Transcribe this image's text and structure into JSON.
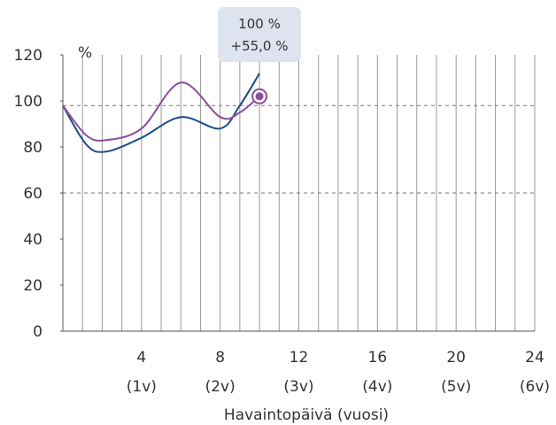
{
  "chart_data": {
    "type": "line",
    "ylabel": "%",
    "xlabel": "Havaintopäivä (vuosi)",
    "ylim": [
      0,
      120
    ],
    "xlim": [
      0,
      24
    ],
    "yticks": [
      0,
      20,
      40,
      60,
      80,
      100,
      120
    ],
    "xticks": [
      {
        "value": 4,
        "label": "4",
        "sublabel": "(1v)"
      },
      {
        "value": 8,
        "label": "8",
        "sublabel": "(2v)"
      },
      {
        "value": 12,
        "label": "12",
        "sublabel": "(3v)"
      },
      {
        "value": 16,
        "label": "16",
        "sublabel": "(4v)"
      },
      {
        "value": 20,
        "label": "20",
        "sublabel": "(5v)"
      },
      {
        "value": 24,
        "label": "24",
        "sublabel": "(6v)"
      }
    ],
    "reference_lines": [
      98,
      60
    ],
    "series": [
      {
        "color": "#1b4f86",
        "points": [
          [
            0,
            98
          ],
          [
            1.2,
            81
          ],
          [
            2.2,
            78
          ],
          [
            4,
            84
          ],
          [
            6,
            93
          ],
          [
            8,
            88
          ],
          [
            9,
            98
          ],
          [
            10,
            112
          ]
        ]
      },
      {
        "color": "#8b4d9e",
        "points": [
          [
            0,
            98
          ],
          [
            1.2,
            85
          ],
          [
            2.2,
            83
          ],
          [
            4,
            88
          ],
          [
            6,
            108
          ],
          [
            8,
            93
          ],
          [
            9,
            95
          ],
          [
            10,
            102
          ]
        ]
      }
    ],
    "highlight": {
      "x": 10,
      "y": 102,
      "color": "#8b4d9e"
    },
    "tooltip": {
      "line1": "100 %",
      "line2": "+55,0 %",
      "bg": "#dde3ef"
    }
  }
}
